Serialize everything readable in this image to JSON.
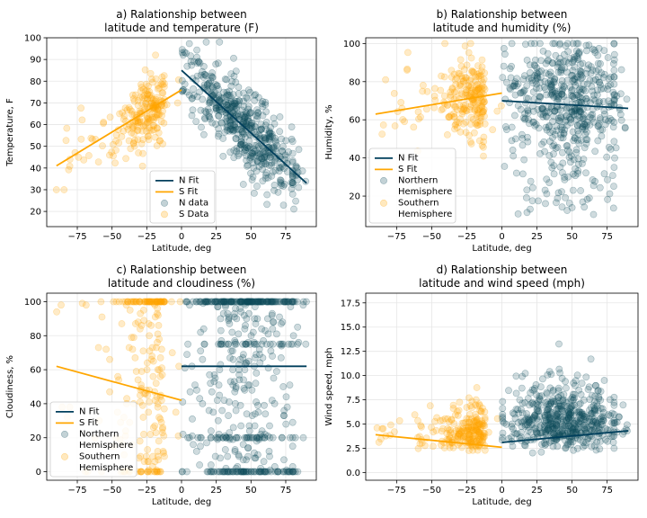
{
  "colors": {
    "north": "#0f4c5c",
    "north_fit": "#003f5c",
    "south": "#ffa600",
    "south_fit": "#ffa600",
    "grid": "#e6e6e6",
    "axis": "#000000"
  },
  "chart_data": [
    {
      "id": "a",
      "type": "scatter",
      "title_lines": [
        "a) Ralationship between",
        "latitude and temperature (F)"
      ],
      "xlabel": "Latitude, deg",
      "ylabel": "Temperature, F",
      "xlim": [
        -97,
        97
      ],
      "ylim": [
        13,
        100
      ],
      "xticks": [
        -75,
        -50,
        -25,
        0,
        25,
        50,
        75
      ],
      "yticks": [
        20,
        30,
        40,
        50,
        60,
        70,
        80,
        90,
        100
      ],
      "grid": true,
      "legend_position": "bottom-center",
      "legend": [
        {
          "kind": "line",
          "series": "north_fit",
          "label_lines": [
            "N Fit"
          ]
        },
        {
          "kind": "line",
          "series": "south_fit",
          "label_lines": [
            "S Fit"
          ]
        },
        {
          "kind": "marker",
          "series": "north",
          "label_lines": [
            "N data"
          ]
        },
        {
          "kind": "marker",
          "series": "south",
          "label_lines": [
            "S Data"
          ]
        }
      ],
      "fits": {
        "north": {
          "x": [
            0,
            90
          ],
          "y": [
            85,
            33
          ]
        },
        "south": {
          "x": [
            -90,
            0
          ],
          "y": [
            41,
            76
          ]
        }
      }
    },
    {
      "id": "b",
      "type": "scatter",
      "title_lines": [
        "b) Ralationship between",
        "latitude and humidity (%)"
      ],
      "xlabel": "Latitude, deg",
      "ylabel": "Humidity, %",
      "xlim": [
        -97,
        97
      ],
      "ylim": [
        4,
        103
      ],
      "xticks": [
        -75,
        -50,
        -25,
        0,
        25,
        50,
        75
      ],
      "yticks": [
        20,
        40,
        60,
        80,
        100
      ],
      "grid": true,
      "legend_position": "bottom-left",
      "legend": [
        {
          "kind": "line",
          "series": "north_fit",
          "label_lines": [
            "N Fit"
          ]
        },
        {
          "kind": "line",
          "series": "south_fit",
          "label_lines": [
            "S Fit"
          ]
        },
        {
          "kind": "marker",
          "series": "north",
          "label_lines": [
            "Northern",
            "Hemisphere"
          ]
        },
        {
          "kind": "marker",
          "series": "south",
          "label_lines": [
            "Southern",
            "Hemisphere"
          ]
        }
      ],
      "fits": {
        "north": {
          "x": [
            0,
            90
          ],
          "y": [
            70,
            66
          ]
        },
        "south": {
          "x": [
            -90,
            0
          ],
          "y": [
            63,
            74
          ]
        }
      }
    },
    {
      "id": "c",
      "type": "scatter",
      "title_lines": [
        "c) Ralationship between",
        "latitude and cloudiness (%)"
      ],
      "xlabel": "Latitude, deg",
      "ylabel": "Cloudiness, %",
      "xlim": [
        -97,
        97
      ],
      "ylim": [
        -5,
        105
      ],
      "xticks": [
        -75,
        -50,
        -25,
        0,
        25,
        50,
        75
      ],
      "yticks": [
        0,
        20,
        40,
        60,
        80,
        100
      ],
      "grid": true,
      "legend_position": "bottom-left",
      "legend": [
        {
          "kind": "line",
          "series": "north_fit",
          "label_lines": [
            "N Fit"
          ]
        },
        {
          "kind": "line",
          "series": "south_fit",
          "label_lines": [
            "S Fit"
          ]
        },
        {
          "kind": "marker",
          "series": "north",
          "label_lines": [
            "Northern",
            "Hemisphere"
          ]
        },
        {
          "kind": "marker",
          "series": "south",
          "label_lines": [
            "Southern",
            "Hemisphere"
          ]
        }
      ],
      "fits": {
        "north": {
          "x": [
            0,
            90
          ],
          "y": [
            62,
            62
          ]
        },
        "south": {
          "x": [
            -90,
            0
          ],
          "y": [
            62,
            42
          ]
        }
      }
    },
    {
      "id": "d",
      "type": "scatter",
      "title_lines": [
        "d) Ralationship between",
        "latitude and wind speed (mph)"
      ],
      "xlabel": "Latitude, deg",
      "ylabel": "Wind speed, mph",
      "xlim": [
        -97,
        97
      ],
      "ylim": [
        -0.8,
        18.5
      ],
      "xticks": [
        -75,
        -50,
        -25,
        0,
        25,
        50,
        75
      ],
      "yticks": [
        0.0,
        2.5,
        5.0,
        7.5,
        10.0,
        12.5,
        15.0,
        17.5
      ],
      "ytick_decimals": 1,
      "grid": true,
      "legend_position": "none",
      "legend": [],
      "fits": {
        "north": {
          "x": [
            0,
            90
          ],
          "y": [
            3.1,
            4.3
          ]
        },
        "south": {
          "x": [
            -90,
            0
          ],
          "y": [
            3.9,
            2.6
          ]
        }
      }
    }
  ]
}
